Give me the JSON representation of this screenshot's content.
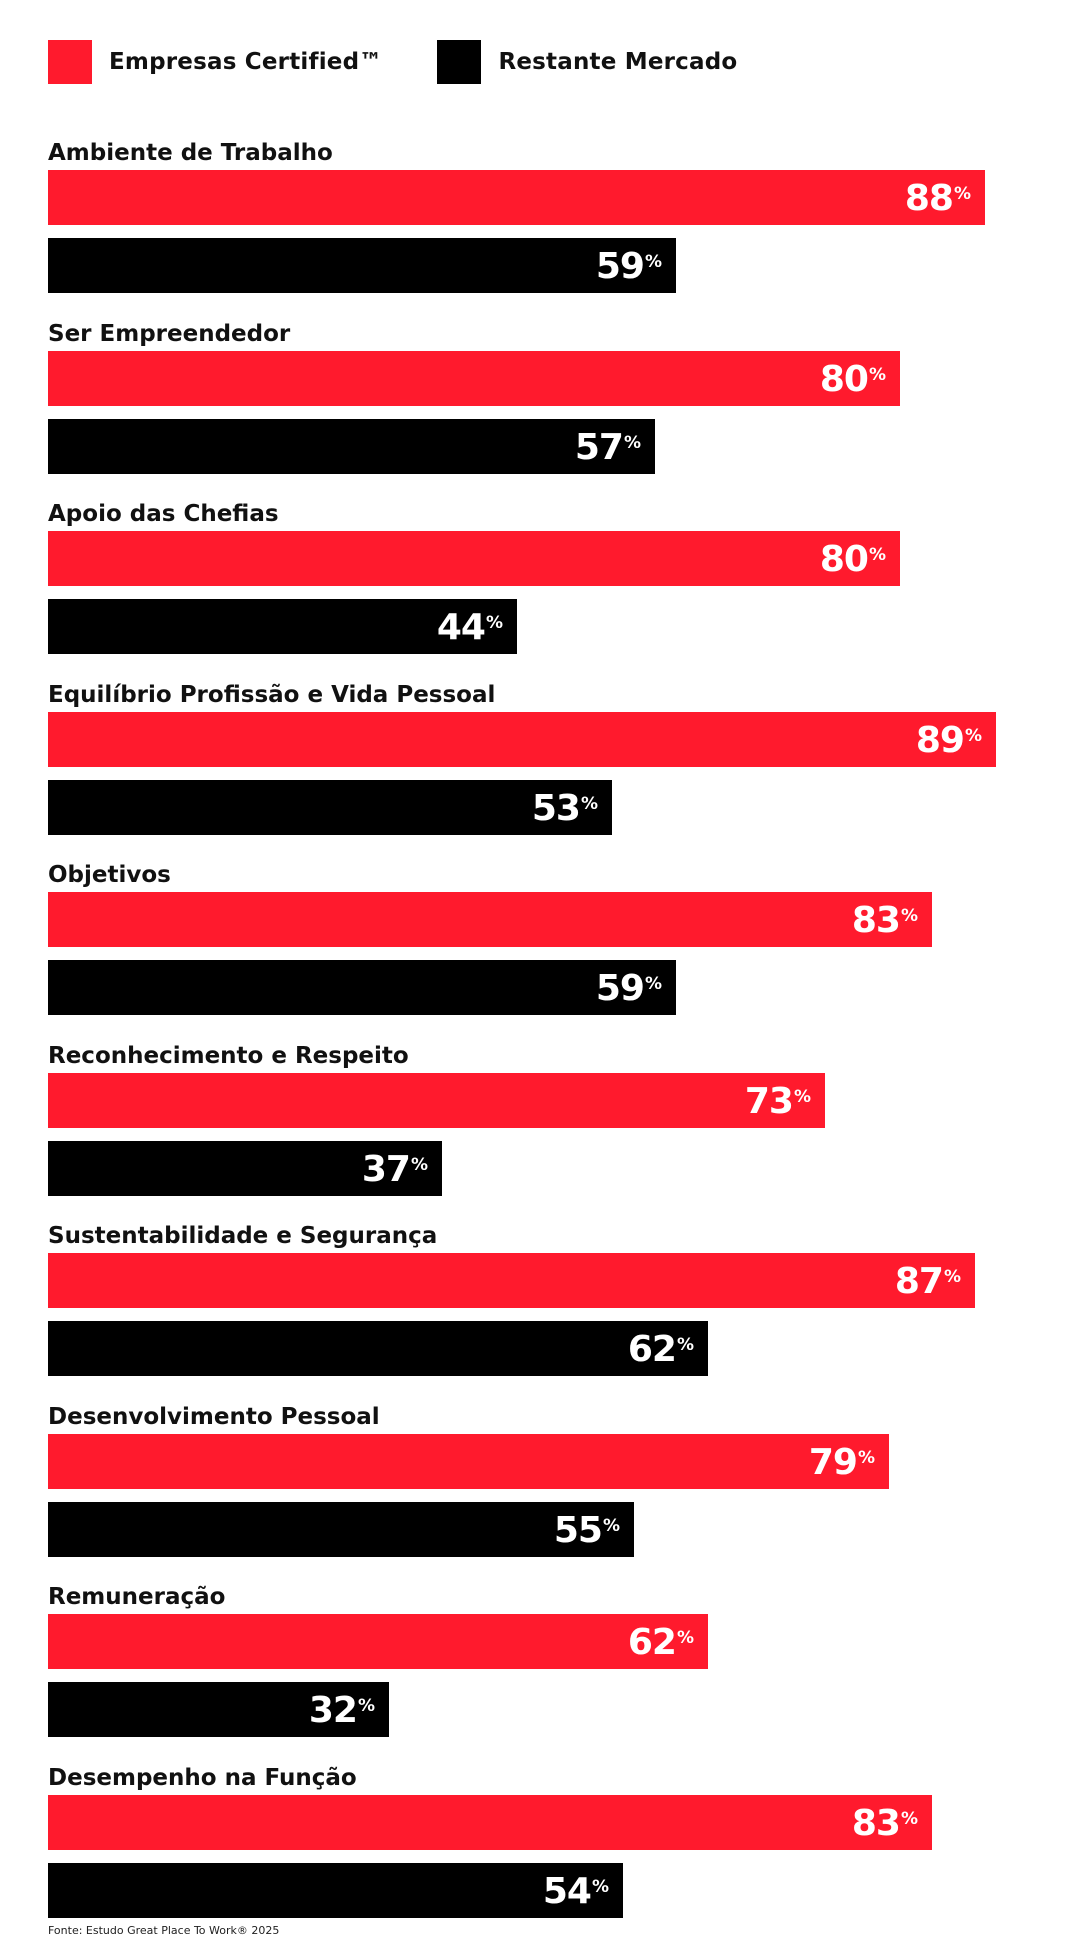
{
  "legend": {
    "series_a": "Empresas Certified™",
    "series_b": "Restante Mercado"
  },
  "colors": {
    "series_a": "#ff1a2d",
    "series_b": "#000000",
    "value_text": "#ffffff"
  },
  "footer": "Fonte: Estudo Great Place To Work® 2025",
  "chart_data": {
    "type": "bar",
    "orientation": "horizontal",
    "unit": "%",
    "categories": [
      "Ambiente de Trabalho",
      "Ser Empreendedor",
      "Apoio das Chefias",
      "Equilíbrio Profissão e Vida Pessoal",
      "Objetivos",
      "Reconhecimento e Respeito",
      "Sustentabilidade e Segurança",
      "Desenvolvimento Pessoal",
      "Remuneração",
      "Desempenho na Função"
    ],
    "series": [
      {
        "name": "Empresas Certified™",
        "values": [
          88,
          80,
          80,
          89,
          83,
          73,
          87,
          79,
          62,
          83
        ]
      },
      {
        "name": "Restante Mercado",
        "values": [
          59,
          57,
          44,
          53,
          59,
          37,
          62,
          55,
          32,
          54
        ]
      }
    ],
    "xlim": [
      0,
      100
    ],
    "grid": false,
    "legend_position": "top-left"
  }
}
